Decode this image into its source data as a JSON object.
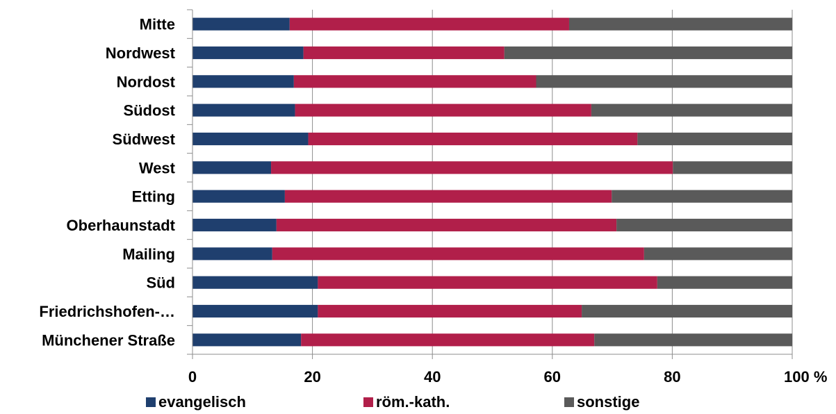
{
  "chart_data": {
    "type": "bar",
    "orientation": "horizontal",
    "stacked": "percent",
    "categories": [
      "Mitte",
      "Nordwest",
      "Nordost",
      "Südost",
      "Südwest",
      "West",
      "Etting",
      "Oberhaunstadt",
      "Mailing",
      "Süd",
      "Friedrichshofen-…",
      "Münchener Straße"
    ],
    "series": [
      {
        "name": "evangelisch",
        "color": "#1f3f6e",
        "values": [
          16.2,
          18.5,
          16.9,
          17.1,
          19.3,
          13.1,
          15.4,
          14.0,
          13.3,
          20.9,
          20.9,
          18.1
        ]
      },
      {
        "name": "röm.-kath.",
        "color": "#b11f4a",
        "values": [
          46.6,
          33.5,
          40.4,
          49.4,
          54.9,
          67.0,
          54.5,
          56.7,
          62.0,
          56.6,
          44.0,
          48.9
        ]
      },
      {
        "name": "sonstige",
        "color": "#5a5a5a",
        "values": [
          37.2,
          48.0,
          42.7,
          33.5,
          25.8,
          19.9,
          30.1,
          29.3,
          24.7,
          22.5,
          35.1,
          33.0
        ]
      }
    ],
    "xlim": [
      0,
      100
    ],
    "xticks": [
      0,
      20,
      40,
      60,
      80,
      100
    ],
    "xtick_labels": [
      "0",
      "20",
      "40",
      "60",
      "80",
      "100 %"
    ],
    "grid": true,
    "legend_position": "bottom"
  }
}
